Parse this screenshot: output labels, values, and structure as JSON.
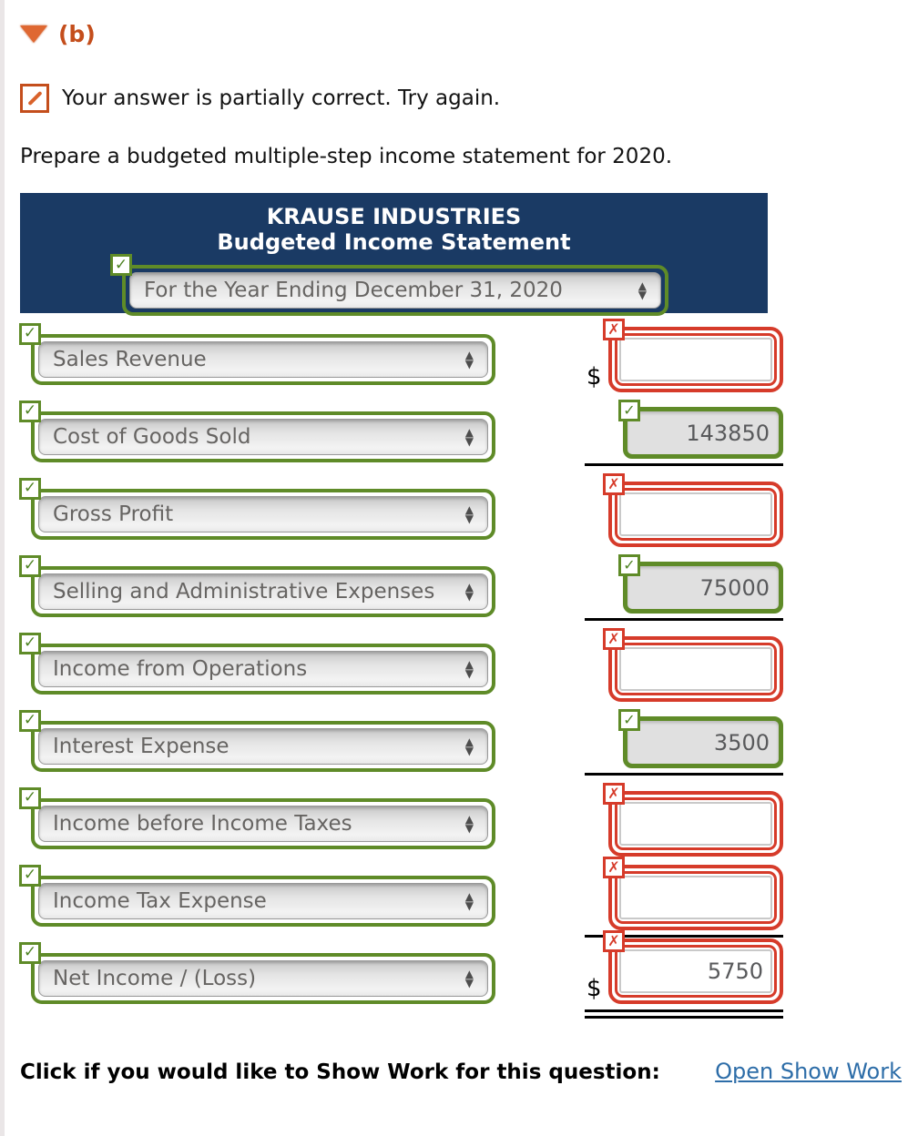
{
  "page": {
    "section_label": "(b)",
    "feedback_text": "Your answer is partially correct.  Try again.",
    "instruction": "Prepare a budgeted multiple-step income statement for 2020."
  },
  "statement": {
    "company": "KRAUSE INDUSTRIES",
    "title": "Budgeted Income Statement",
    "period_selected": "For the Year Ending December 31, 2020",
    "period_status": "correct"
  },
  "rows": [
    {
      "label": "Sales Revenue",
      "value": "",
      "amount_status": "incorrect",
      "currency": "$",
      "underline": "none"
    },
    {
      "label": "Cost of Goods Sold",
      "value": "143850",
      "amount_status": "correct",
      "currency": "",
      "underline": "single"
    },
    {
      "label": "Gross Profit",
      "value": "",
      "amount_status": "incorrect",
      "currency": "",
      "underline": "none"
    },
    {
      "label": "Selling and Administrative Expenses",
      "value": "75000",
      "amount_status": "correct",
      "currency": "",
      "underline": "single"
    },
    {
      "label": "Income from Operations",
      "value": "",
      "amount_status": "incorrect",
      "currency": "",
      "underline": "none"
    },
    {
      "label": "Interest Expense",
      "value": "3500",
      "amount_status": "correct",
      "currency": "",
      "underline": "single"
    },
    {
      "label": "Income before Income Taxes",
      "value": "",
      "amount_status": "incorrect",
      "currency": "",
      "underline": "none"
    },
    {
      "label": "Income Tax Expense",
      "value": "",
      "amount_status": "incorrect",
      "currency": "",
      "underline": "single"
    },
    {
      "label": "Net Income / (Loss)",
      "value": "5750",
      "amount_status": "incorrect",
      "currency": "$",
      "underline": "double"
    }
  ],
  "footer": {
    "prompt": "Click if you would like to Show Work for this question:",
    "link_label": "Open Show Work"
  },
  "icons": {
    "check": "✓",
    "cross": "✗",
    "arrow_up": "▲",
    "arrow_down": "▼"
  },
  "colors": {
    "navy_header": "#1a3a64",
    "correct_green": "#5f8b28",
    "incorrect_red": "#d63b2a",
    "section_orange": "#c44e1c",
    "link_blue": "#2d6da8"
  }
}
